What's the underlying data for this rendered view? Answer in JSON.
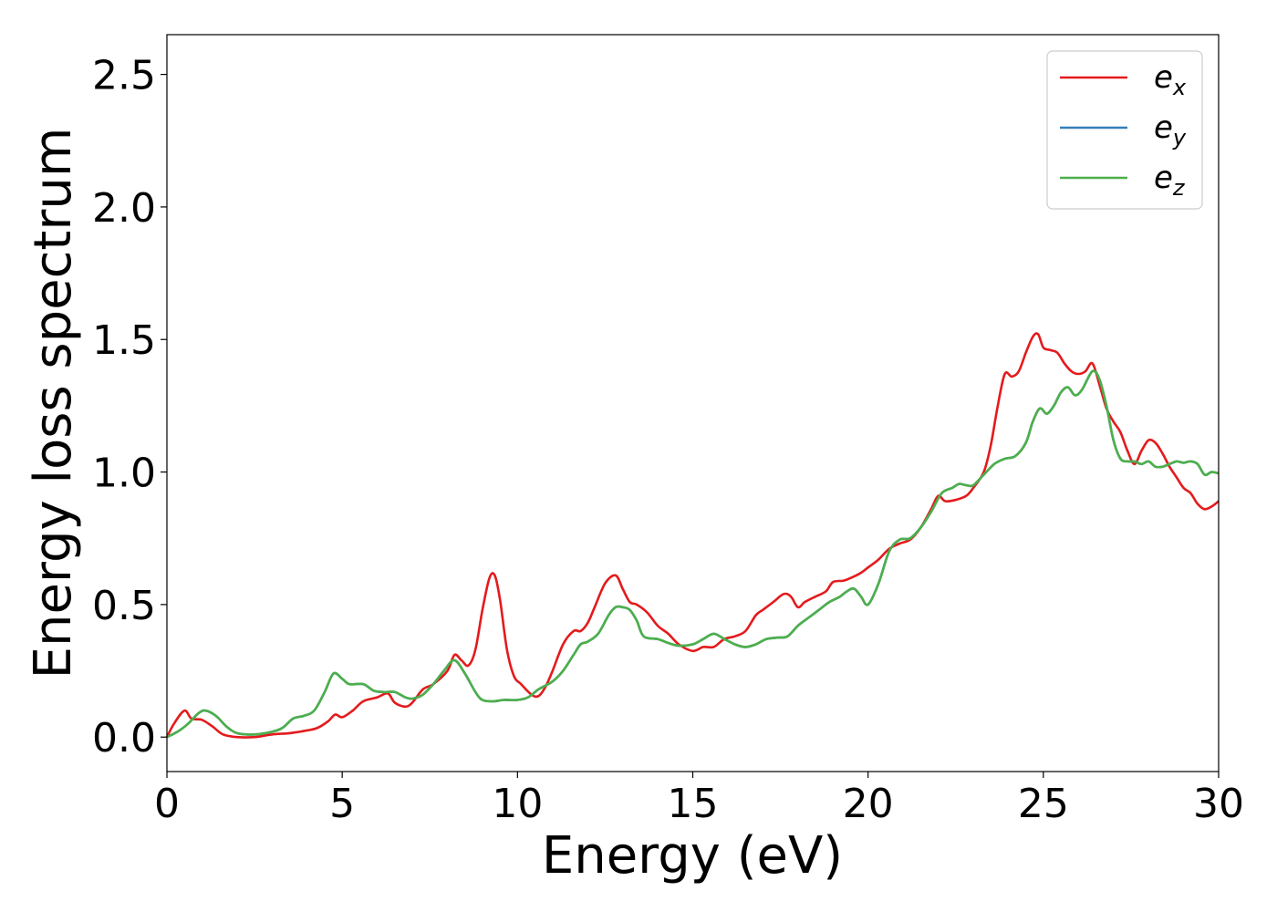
{
  "chart_data": {
    "type": "line",
    "title": "",
    "xlabel": "Energy (eV)",
    "ylabel": "Energy loss spectrum",
    "xlim": [
      0,
      30
    ],
    "ylim": [
      -0.13,
      2.65
    ],
    "xticks": [
      0,
      5,
      10,
      15,
      20,
      25,
      30
    ],
    "xtick_labels": [
      "0",
      "5",
      "10",
      "15",
      "20",
      "25",
      "30"
    ],
    "yticks": [
      0.0,
      0.5,
      1.0,
      1.5,
      2.0,
      2.5
    ],
    "ytick_labels": [
      "0.0",
      "0.5",
      "1.0",
      "1.5",
      "2.0",
      "2.5"
    ],
    "grid": false,
    "legend_position": "top-right",
    "series": [
      {
        "name": "e_x",
        "legend_main": "e",
        "legend_sub": "x",
        "color": "#e41a1c",
        "x": [
          0,
          0.2,
          0.5,
          0.7,
          1.0,
          1.3,
          1.6,
          2.0,
          2.5,
          3.0,
          3.5,
          4.0,
          4.3,
          4.6,
          4.8,
          5.0,
          5.3,
          5.6,
          6.0,
          6.3,
          6.5,
          6.8,
          7.0,
          7.3,
          7.6,
          8.0,
          8.2,
          8.4,
          8.6,
          8.8,
          9.0,
          9.2,
          9.35,
          9.5,
          9.7,
          9.9,
          10.1,
          10.4,
          10.6,
          10.8,
          11.0,
          11.3,
          11.6,
          11.8,
          12.0,
          12.2,
          12.5,
          12.8,
          13.0,
          13.2,
          13.4,
          13.7,
          14.0,
          14.3,
          14.6,
          15.0,
          15.3,
          15.6,
          15.9,
          16.2,
          16.5,
          16.8,
          17.0,
          17.3,
          17.6,
          17.8,
          18.0,
          18.2,
          18.5,
          18.8,
          19.0,
          19.3,
          19.5,
          19.8,
          20.0,
          20.3,
          20.6,
          20.9,
          21.2,
          21.5,
          21.8,
          22.0,
          22.2,
          22.5,
          22.8,
          23.0,
          23.3,
          23.5,
          23.7,
          23.9,
          24.1,
          24.3,
          24.5,
          24.7,
          24.85,
          25.0,
          25.2,
          25.4,
          25.6,
          25.8,
          26.0,
          26.2,
          26.4,
          26.6,
          26.8,
          27.0,
          27.2,
          27.4,
          27.6,
          27.8,
          28.0,
          28.2,
          28.4,
          28.6,
          28.8,
          29.0,
          29.2,
          29.4,
          29.6,
          29.8,
          30.0
        ],
        "y": [
          0.0,
          0.05,
          0.1,
          0.07,
          0.065,
          0.04,
          0.01,
          0.0,
          0.0,
          0.01,
          0.015,
          0.025,
          0.035,
          0.06,
          0.085,
          0.075,
          0.1,
          0.135,
          0.15,
          0.165,
          0.13,
          0.115,
          0.13,
          0.18,
          0.2,
          0.25,
          0.31,
          0.29,
          0.27,
          0.33,
          0.48,
          0.6,
          0.61,
          0.52,
          0.33,
          0.23,
          0.2,
          0.16,
          0.155,
          0.19,
          0.25,
          0.35,
          0.4,
          0.4,
          0.43,
          0.49,
          0.58,
          0.61,
          0.56,
          0.51,
          0.5,
          0.47,
          0.42,
          0.39,
          0.35,
          0.325,
          0.34,
          0.34,
          0.37,
          0.38,
          0.4,
          0.46,
          0.48,
          0.51,
          0.54,
          0.53,
          0.49,
          0.51,
          0.53,
          0.55,
          0.585,
          0.59,
          0.6,
          0.62,
          0.64,
          0.67,
          0.71,
          0.73,
          0.745,
          0.79,
          0.86,
          0.91,
          0.89,
          0.895,
          0.91,
          0.94,
          1.0,
          1.1,
          1.25,
          1.37,
          1.36,
          1.38,
          1.45,
          1.51,
          1.52,
          1.47,
          1.46,
          1.45,
          1.41,
          1.38,
          1.37,
          1.38,
          1.41,
          1.33,
          1.24,
          1.19,
          1.15,
          1.08,
          1.03,
          1.08,
          1.12,
          1.11,
          1.07,
          1.02,
          0.98,
          0.94,
          0.92,
          0.88,
          0.86,
          0.87,
          0.89
        ]
      },
      {
        "name": "e_y",
        "legend_main": "e",
        "legend_sub": "y",
        "color": "#377eb8",
        "x": [
          0,
          0.3,
          0.6,
          0.9,
          1.1,
          1.4,
          1.7,
          2.0,
          2.5,
          3.0,
          3.3,
          3.6,
          3.9,
          4.2,
          4.5,
          4.75,
          5.0,
          5.2,
          5.6,
          5.9,
          6.2,
          6.5,
          6.8,
          7.0,
          7.3,
          7.6,
          7.9,
          8.2,
          8.5,
          8.8,
          9.0,
          9.3,
          9.6,
          10.0,
          10.3,
          10.6,
          11.0,
          11.3,
          11.6,
          11.8,
          12.0,
          12.3,
          12.6,
          12.8,
          13.0,
          13.2,
          13.4,
          13.6,
          14.0,
          14.3,
          14.6,
          15.0,
          15.3,
          15.6,
          15.9,
          16.2,
          16.5,
          16.8,
          17.1,
          17.4,
          17.7,
          18.0,
          18.3,
          18.6,
          18.9,
          19.2,
          19.4,
          19.6,
          19.8,
          20.0,
          20.3,
          20.6,
          20.9,
          21.2,
          21.5,
          21.8,
          22.1,
          22.4,
          22.6,
          22.8,
          23.0,
          23.3,
          23.6,
          23.9,
          24.2,
          24.5,
          24.7,
          24.9,
          25.1,
          25.3,
          25.5,
          25.7,
          25.9,
          26.1,
          26.4,
          26.6,
          26.8,
          27.0,
          27.2,
          27.4,
          27.6,
          27.8,
          28.0,
          28.2,
          28.4,
          28.6,
          28.8,
          29.0,
          29.2,
          29.4,
          29.6,
          29.8,
          30.0
        ],
        "y": [
          0.0,
          0.02,
          0.05,
          0.09,
          0.1,
          0.08,
          0.04,
          0.015,
          0.01,
          0.02,
          0.035,
          0.07,
          0.08,
          0.1,
          0.17,
          0.24,
          0.22,
          0.2,
          0.2,
          0.175,
          0.17,
          0.17,
          0.15,
          0.145,
          0.16,
          0.2,
          0.25,
          0.29,
          0.24,
          0.17,
          0.14,
          0.135,
          0.14,
          0.14,
          0.15,
          0.18,
          0.21,
          0.25,
          0.31,
          0.35,
          0.36,
          0.39,
          0.46,
          0.49,
          0.49,
          0.48,
          0.44,
          0.38,
          0.37,
          0.355,
          0.345,
          0.35,
          0.37,
          0.39,
          0.37,
          0.35,
          0.34,
          0.35,
          0.37,
          0.375,
          0.38,
          0.42,
          0.45,
          0.48,
          0.51,
          0.53,
          0.55,
          0.56,
          0.53,
          0.5,
          0.58,
          0.7,
          0.745,
          0.75,
          0.79,
          0.85,
          0.92,
          0.94,
          0.955,
          0.95,
          0.95,
          0.99,
          1.03,
          1.05,
          1.06,
          1.11,
          1.19,
          1.24,
          1.22,
          1.25,
          1.3,
          1.32,
          1.29,
          1.31,
          1.38,
          1.35,
          1.25,
          1.12,
          1.05,
          1.04,
          1.04,
          1.03,
          1.04,
          1.02,
          1.02,
          1.03,
          1.04,
          1.035,
          1.04,
          1.03,
          0.99,
          1.0,
          0.995
        ]
      },
      {
        "name": "e_z",
        "legend_main": "e",
        "legend_sub": "z",
        "color": "#4daf4a",
        "x": [
          0,
          0.3,
          0.6,
          0.9,
          1.1,
          1.4,
          1.7,
          2.0,
          2.5,
          3.0,
          3.3,
          3.6,
          3.9,
          4.2,
          4.5,
          4.75,
          5.0,
          5.2,
          5.6,
          5.9,
          6.2,
          6.5,
          6.8,
          7.0,
          7.3,
          7.6,
          7.9,
          8.2,
          8.5,
          8.8,
          9.0,
          9.3,
          9.6,
          10.0,
          10.3,
          10.6,
          11.0,
          11.3,
          11.6,
          11.8,
          12.0,
          12.3,
          12.6,
          12.8,
          13.0,
          13.2,
          13.4,
          13.6,
          14.0,
          14.3,
          14.6,
          15.0,
          15.3,
          15.6,
          15.9,
          16.2,
          16.5,
          16.8,
          17.1,
          17.4,
          17.7,
          18.0,
          18.3,
          18.6,
          18.9,
          19.2,
          19.4,
          19.6,
          19.8,
          20.0,
          20.3,
          20.6,
          20.9,
          21.2,
          21.5,
          21.8,
          22.1,
          22.4,
          22.6,
          22.8,
          23.0,
          23.3,
          23.6,
          23.9,
          24.2,
          24.5,
          24.7,
          24.9,
          25.1,
          25.3,
          25.5,
          25.7,
          25.9,
          26.1,
          26.4,
          26.6,
          26.8,
          27.0,
          27.2,
          27.4,
          27.6,
          27.8,
          28.0,
          28.2,
          28.4,
          28.6,
          28.8,
          29.0,
          29.2,
          29.4,
          29.6,
          29.8,
          30.0
        ],
        "y": [
          0.0,
          0.02,
          0.05,
          0.09,
          0.1,
          0.08,
          0.04,
          0.015,
          0.01,
          0.02,
          0.035,
          0.07,
          0.08,
          0.1,
          0.17,
          0.24,
          0.22,
          0.2,
          0.2,
          0.175,
          0.17,
          0.17,
          0.15,
          0.145,
          0.16,
          0.2,
          0.25,
          0.29,
          0.24,
          0.17,
          0.14,
          0.135,
          0.14,
          0.14,
          0.15,
          0.18,
          0.21,
          0.25,
          0.31,
          0.35,
          0.36,
          0.39,
          0.46,
          0.49,
          0.49,
          0.48,
          0.44,
          0.38,
          0.37,
          0.355,
          0.345,
          0.35,
          0.37,
          0.39,
          0.37,
          0.35,
          0.34,
          0.35,
          0.37,
          0.375,
          0.38,
          0.42,
          0.45,
          0.48,
          0.51,
          0.53,
          0.55,
          0.56,
          0.53,
          0.5,
          0.58,
          0.7,
          0.745,
          0.75,
          0.79,
          0.85,
          0.92,
          0.94,
          0.955,
          0.95,
          0.95,
          0.99,
          1.03,
          1.05,
          1.06,
          1.11,
          1.19,
          1.24,
          1.22,
          1.25,
          1.3,
          1.32,
          1.29,
          1.31,
          1.38,
          1.35,
          1.25,
          1.12,
          1.05,
          1.04,
          1.04,
          1.03,
          1.04,
          1.02,
          1.02,
          1.03,
          1.04,
          1.035,
          1.04,
          1.03,
          0.99,
          1.0,
          0.995
        ]
      }
    ]
  }
}
